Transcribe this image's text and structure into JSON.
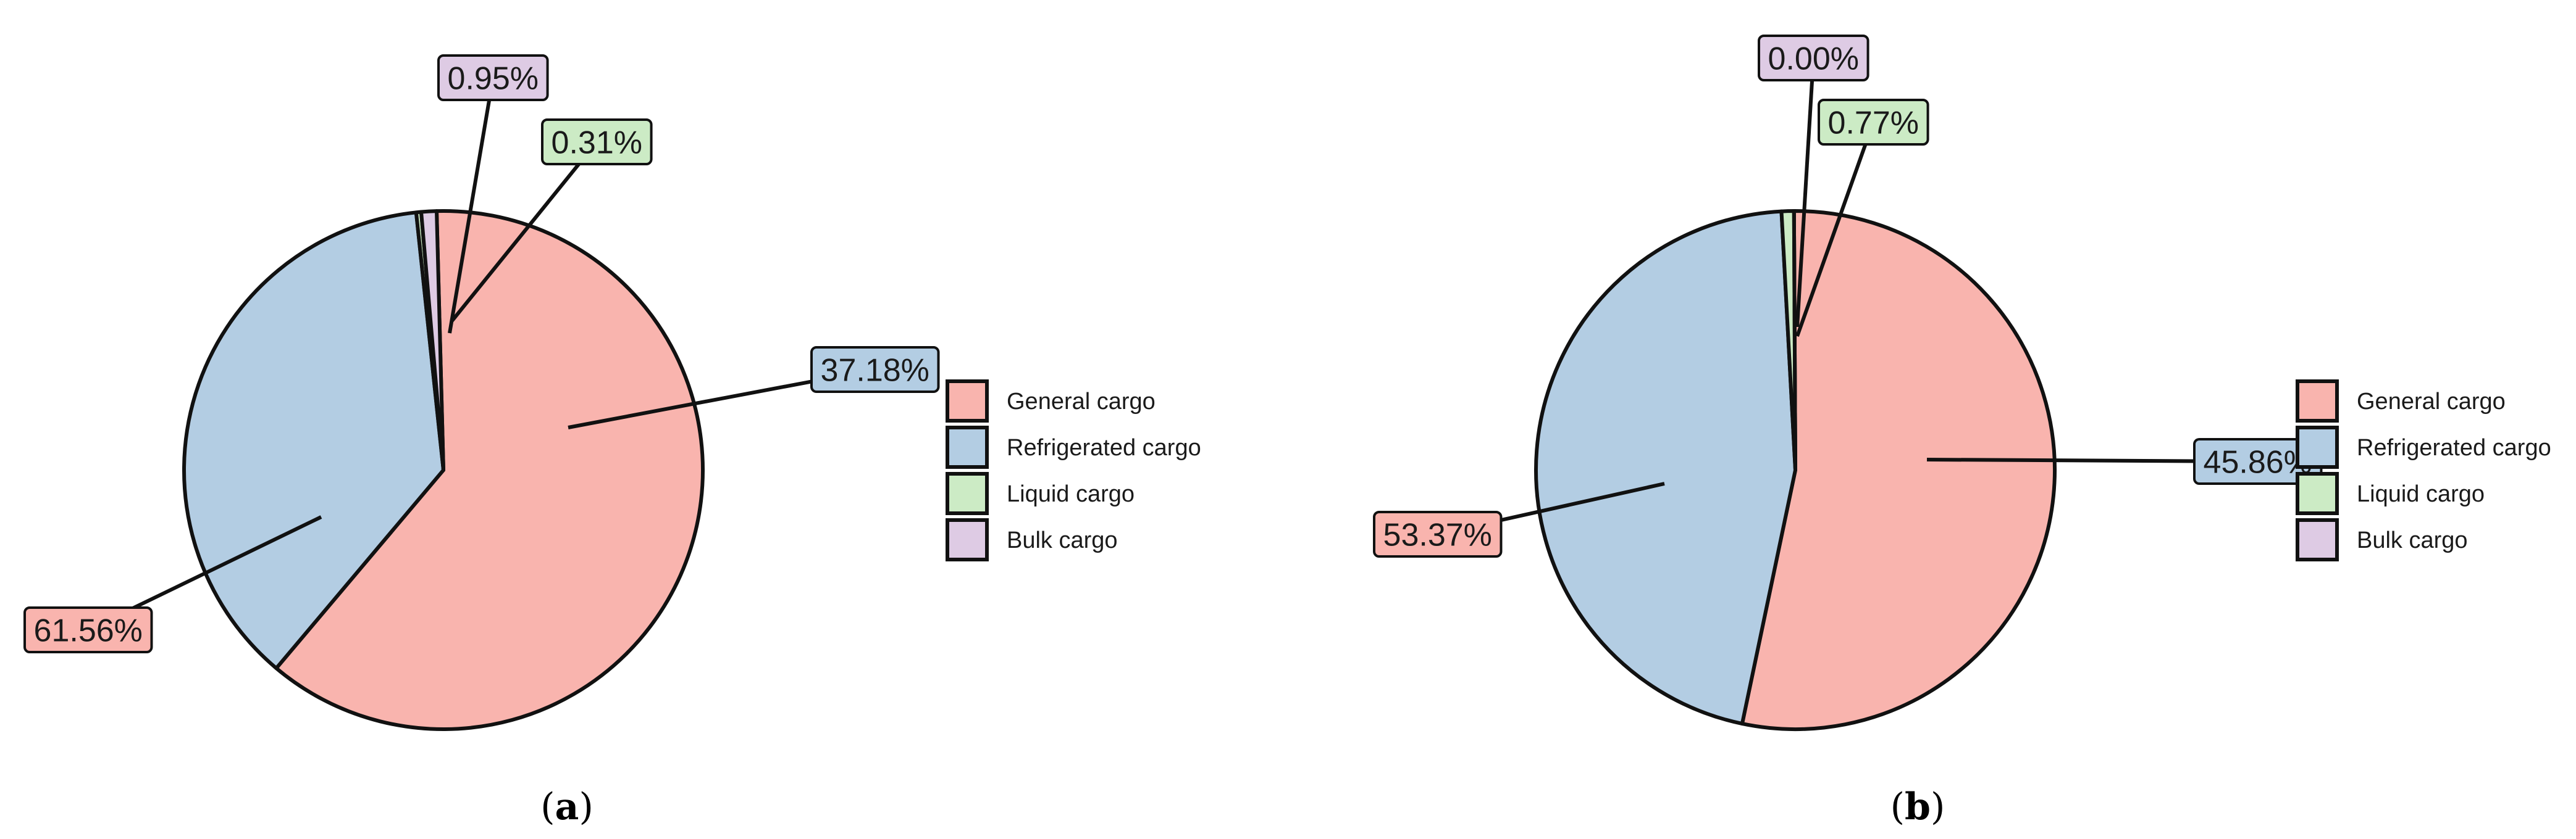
{
  "colors": {
    "General cargo": "#f9b4ae",
    "Refrigerated cargo": "#b3cde3",
    "Liquid cargo": "#ccebc5",
    "Bulk cargo": "#decbe4"
  },
  "chart_data": [
    {
      "type": "pie",
      "panel_label": "a",
      "categories": [
        "General cargo",
        "Refrigerated cargo",
        "Liquid cargo",
        "Bulk cargo"
      ],
      "values": [
        61.56,
        37.18,
        0.31,
        0.95
      ],
      "labels": [
        "61.56%",
        "37.18%",
        "0.31%",
        "0.95%"
      ],
      "legend": [
        "General cargo",
        "Refrigerated cargo",
        "Liquid cargo",
        "Bulk cargo"
      ],
      "legend_position": "right"
    },
    {
      "type": "pie",
      "panel_label": "b",
      "categories": [
        "General cargo",
        "Refrigerated cargo",
        "Liquid cargo",
        "Bulk cargo"
      ],
      "values": [
        53.37,
        45.86,
        0.77,
        0.0
      ],
      "labels": [
        "53.37%",
        "45.86%",
        "0.77%",
        "0.00%"
      ],
      "legend": [
        "General cargo",
        "Refrigerated cargo",
        "Liquid cargo",
        "Bulk cargo"
      ],
      "legend_position": "right"
    }
  ]
}
